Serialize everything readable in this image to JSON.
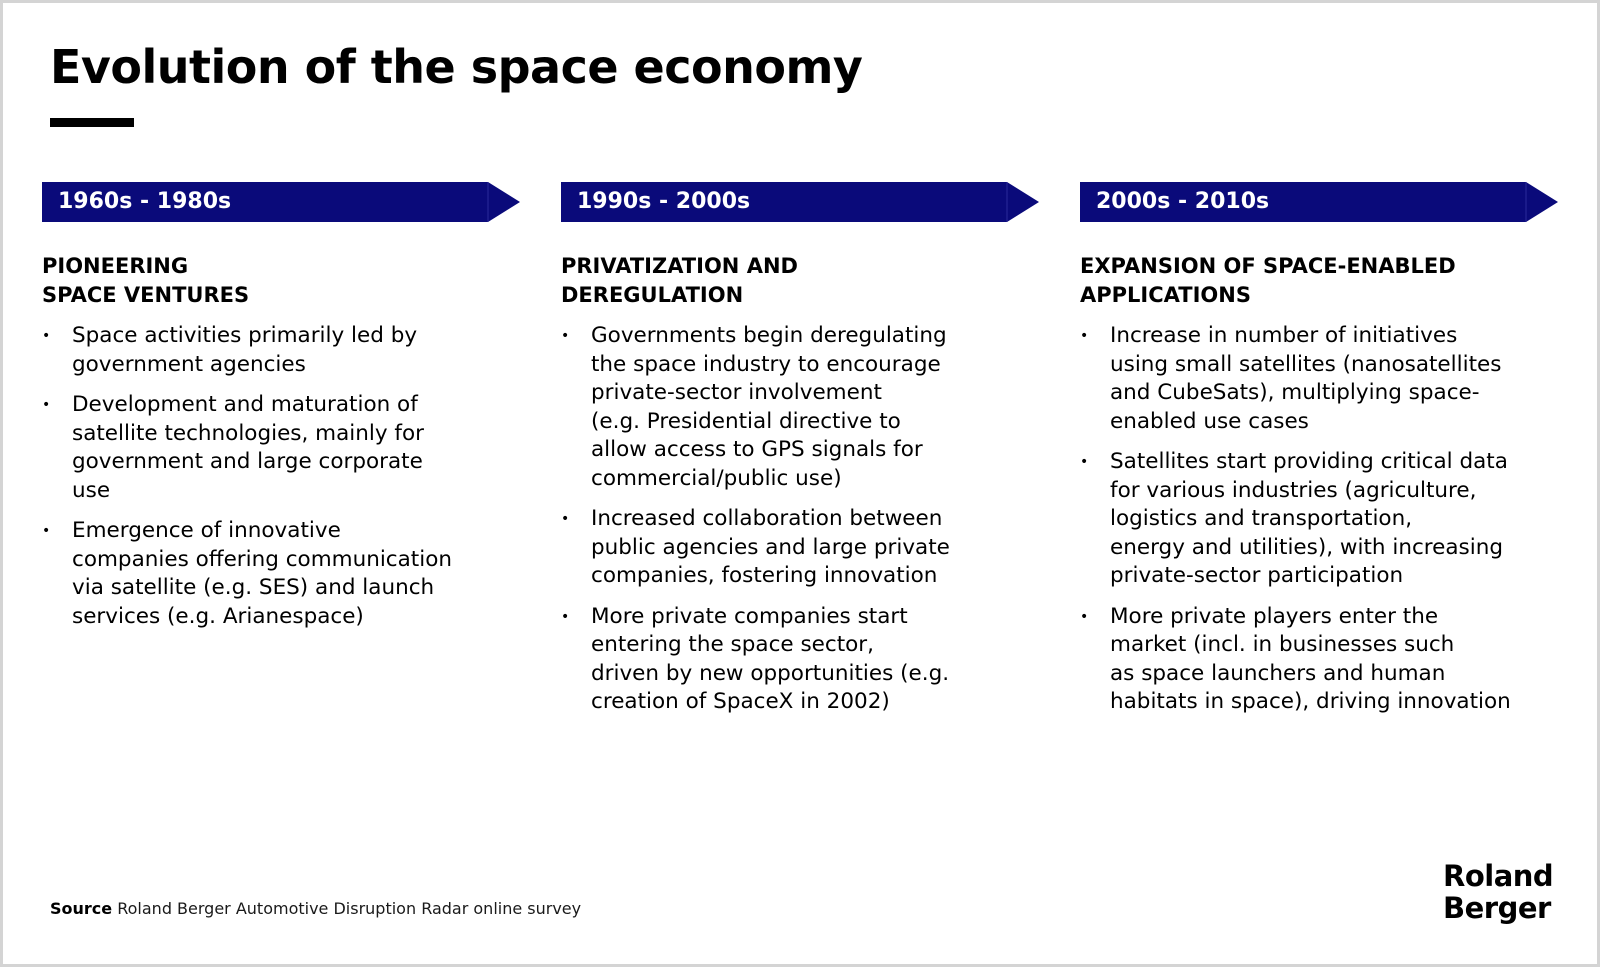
{
  "title": "Evolution of the space economy",
  "colors": {
    "arrow_fill": "#0a0a7a",
    "text": "#000000"
  },
  "columns": [
    {
      "period": "1960s - 1980s",
      "heading_lines": [
        "PIONEERING",
        "SPACE VENTURES"
      ],
      "bullets": [
        {
          "lines": [
            "Space activities primarily led by",
            "government agencies"
          ]
        },
        {
          "lines": [
            "Development and maturation of",
            "satellite technologies, mainly for",
            "government and large corporate",
            "use"
          ]
        },
        {
          "lines": [
            "Emergence of innovative",
            "companies offering communication",
            "via satellite (e.g. SES) and launch",
            "services (e.g. Arianespace)"
          ]
        }
      ]
    },
    {
      "period": "1990s - 2000s",
      "heading_lines": [
        "PRIVATIZATION AND",
        "DEREGULATION"
      ],
      "bullets": [
        {
          "lines": [
            "Governments begin deregulating",
            "the space industry to encourage",
            "private-sector involvement",
            "(e.g. Presidential directive to",
            "allow access to GPS signals for",
            "commercial/public use)"
          ]
        },
        {
          "lines": [
            "Increased collaboration between",
            "public agencies and large private",
            "companies, fostering innovation"
          ]
        },
        {
          "lines": [
            "More private companies start",
            "entering the space sector,",
            "driven by new opportunities (e.g.",
            "creation of SpaceX in 2002)"
          ]
        }
      ]
    },
    {
      "period": "2000s - 2010s",
      "heading_lines": [
        "EXPANSION OF SPACE-ENABLED",
        "APPLICATIONS"
      ],
      "bullets": [
        {
          "lines": [
            "Increase in number of initiatives",
            "using small satellites (nanosatellites",
            "and CubeSats), multiplying space-",
            "enabled use cases"
          ]
        },
        {
          "lines": [
            "Satellites start providing critical data",
            "for various industries (agriculture,",
            "logistics and transportation,",
            "energy and utilities), with increasing",
            "private-sector participation"
          ]
        },
        {
          "lines": [
            "More private players enter the",
            "market (incl. in businesses such",
            "as space launchers and human",
            "habitats in space), driving innovation"
          ]
        }
      ]
    }
  ],
  "source": {
    "label": "Source",
    "text": "Roland Berger Automotive Disruption Radar online survey"
  },
  "logo": {
    "line1": "Roland",
    "line2": "Berger"
  }
}
